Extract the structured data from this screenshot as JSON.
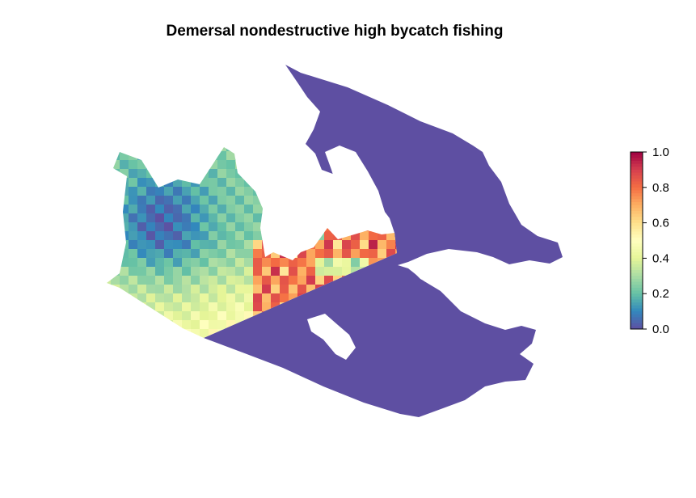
{
  "title": "Demersal nondestructive high bycatch fishing",
  "legend": {
    "ticks": [
      "0.0",
      "0.2",
      "0.4",
      "0.6",
      "0.8",
      "1.0"
    ],
    "min": 0,
    "max": 1,
    "palette": [
      "#5E4FA2",
      "#3288BD",
      "#66C2A5",
      "#ABDDA4",
      "#E6F598",
      "#FFFFBF",
      "#FEE08B",
      "#FDAE61",
      "#F46D43",
      "#D53E4F",
      "#9E0142"
    ]
  },
  "colors": {
    "zero_value": "#5E4FA2"
  }
}
